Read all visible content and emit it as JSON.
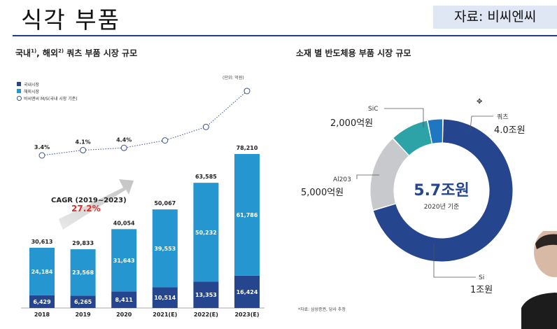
{
  "slide": {
    "title": "식각 부품",
    "source": "자료: 비씨엔씨"
  },
  "chart_data": [
    {
      "type": "bar",
      "stacked": true,
      "title": "국내1), 해외2) 쿼츠 부품 시장 규모",
      "title_parts": [
        "국내",
        "1)",
        ", 해외",
        "2)",
        " 쿼츠 부품 시장 규모"
      ],
      "unit": "(단위: 억원)",
      "categories": [
        "2018",
        "2019",
        "2020",
        "2021(E)",
        "2022(E)",
        "2023(E)"
      ],
      "series": [
        {
          "name": "국내시장",
          "color": "#26458f",
          "values": [
            6429,
            6265,
            8411,
            10514,
            13353,
            16424
          ]
        },
        {
          "name": "해외시장",
          "color": "#2596cf",
          "values": [
            24184,
            23568,
            31643,
            39553,
            50232,
            61786
          ]
        }
      ],
      "totals": [
        "30,613",
        "29,833",
        "40,054",
        "50,067",
        "63,585",
        "78,210"
      ],
      "line_series": {
        "name": "비씨엔씨 M/S(국내 시장 기준)",
        "values_percent": [
          3.4,
          4.1,
          4.4,
          5.4,
          7.2,
          12.0
        ],
        "labels": [
          "3.4%",
          "4.1%",
          "4.4%"
        ]
      },
      "cagr": {
        "label": "CAGR (2019~2023)",
        "value": "27.2%"
      },
      "ylim": [
        0,
        85000
      ]
    },
    {
      "type": "pie",
      "donut": true,
      "title": "소재 별 반도체용 부품 시장 규모",
      "center_value": "5.7조원",
      "center_sub": "2020년 기준",
      "slices": [
        {
          "name": "쿼츠",
          "value": 4.0,
          "unit": "조원",
          "label": "4.0조원",
          "color": "#26458f"
        },
        {
          "name": "Si",
          "value": 1.0,
          "unit": "조원",
          "label": "1조원",
          "color": "#c8c9cc"
        },
        {
          "name": "Al203",
          "value": 0.5,
          "unit": "조원",
          "label": "5,000억원",
          "color": "#2ea3a7"
        },
        {
          "name": "SiC",
          "value": 0.2,
          "unit": "조원",
          "label": "2,000억원",
          "color": "#1f77c2"
        }
      ],
      "footnote": "*자료: 삼성증권, 당사 추정"
    }
  ]
}
